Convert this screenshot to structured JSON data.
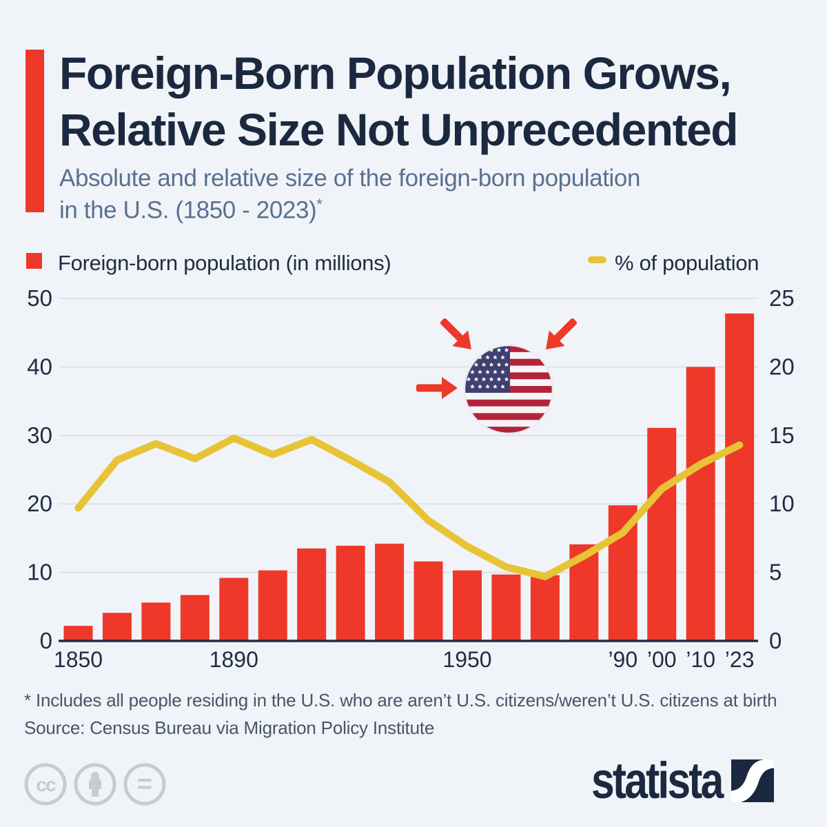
{
  "header": {
    "title_line1": "Foreign-Born Population Grows,",
    "title_line2": "Relative Size Not Unprecedented",
    "subtitle_line1": "Absolute and relative size of the foreign-born population",
    "subtitle_line2": "in the U.S. (1850 - 2023)",
    "subtitle_superscript": "*"
  },
  "legend": {
    "bar_label": "Foreign-born population (in millions)",
    "line_label": "% of population"
  },
  "chart_data": {
    "type": "bar",
    "categories": [
      "1850",
      "1860",
      "1870",
      "1880",
      "1890",
      "1900",
      "1910",
      "1920",
      "1930",
      "1940",
      "1950",
      "1960",
      "1970",
      "1980",
      "1990",
      "2000",
      "2010",
      "2023"
    ],
    "series": [
      {
        "name": "Foreign-born population (in millions)",
        "type": "bar",
        "axis": "left",
        "color": "#ee3829",
        "values": [
          2.2,
          4.1,
          5.6,
          6.7,
          9.2,
          10.3,
          13.5,
          13.9,
          14.2,
          11.6,
          10.3,
          9.7,
          9.6,
          14.1,
          19.8,
          31.1,
          40.0,
          47.8
        ]
      },
      {
        "name": "% of population",
        "type": "line",
        "axis": "right",
        "color": "#e8c335",
        "values": [
          9.7,
          13.2,
          14.4,
          13.3,
          14.8,
          13.6,
          14.7,
          13.2,
          11.6,
          8.8,
          6.9,
          5.4,
          4.7,
          6.2,
          7.9,
          11.1,
          12.9,
          14.3
        ]
      }
    ],
    "left_axis": {
      "ticks": [
        0,
        10,
        20,
        30,
        40,
        50
      ],
      "range": [
        0,
        50
      ]
    },
    "right_axis": {
      "ticks": [
        0,
        5,
        10,
        15,
        20,
        25
      ],
      "range": [
        0,
        25
      ]
    },
    "x_tick_labels": [
      {
        "label": "1850",
        "index": 0
      },
      {
        "label": "1890",
        "index": 4
      },
      {
        "label": "1950",
        "index": 10
      },
      {
        "label": "’90",
        "index": 14
      },
      {
        "label": "’00",
        "index": 15
      },
      {
        "label": "’10",
        "index": 16
      },
      {
        "label": "’23",
        "index": 17
      }
    ],
    "grid": true,
    "legend_position": "top",
    "title": "Foreign-Born Population Grows, Relative Size Not Unprecedented"
  },
  "icons": {
    "illustration": "us-flag-circle-with-inward-arrows",
    "cc_text": "cc",
    "nd_text": "=",
    "license": [
      "cc-icon",
      "attribution-person-icon",
      "equals-icon"
    ],
    "brand_mark": "statista-logo-mark"
  },
  "footer": {
    "footnote": "* Includes all people residing in the U.S. who are aren’t U.S. citizens/weren’t U.S. citizens at birth",
    "source": "Source: Census Bureau via Migration Policy Institute",
    "brand": "statista"
  },
  "colors": {
    "background": "#f0f4f8",
    "bar_red": "#ee3829",
    "line_yellow": "#e8c335",
    "title_navy": "#1b2940",
    "subtitle_gray": "#5a7090",
    "footnote_gray": "#475569",
    "gridline": "#dadfe4",
    "axis_line": "#1f2c42",
    "axis_label": "#1f2c42",
    "cc_gray": "#c4ccd4",
    "flag_blue": "#3f4071",
    "flag_red": "#b32339"
  }
}
